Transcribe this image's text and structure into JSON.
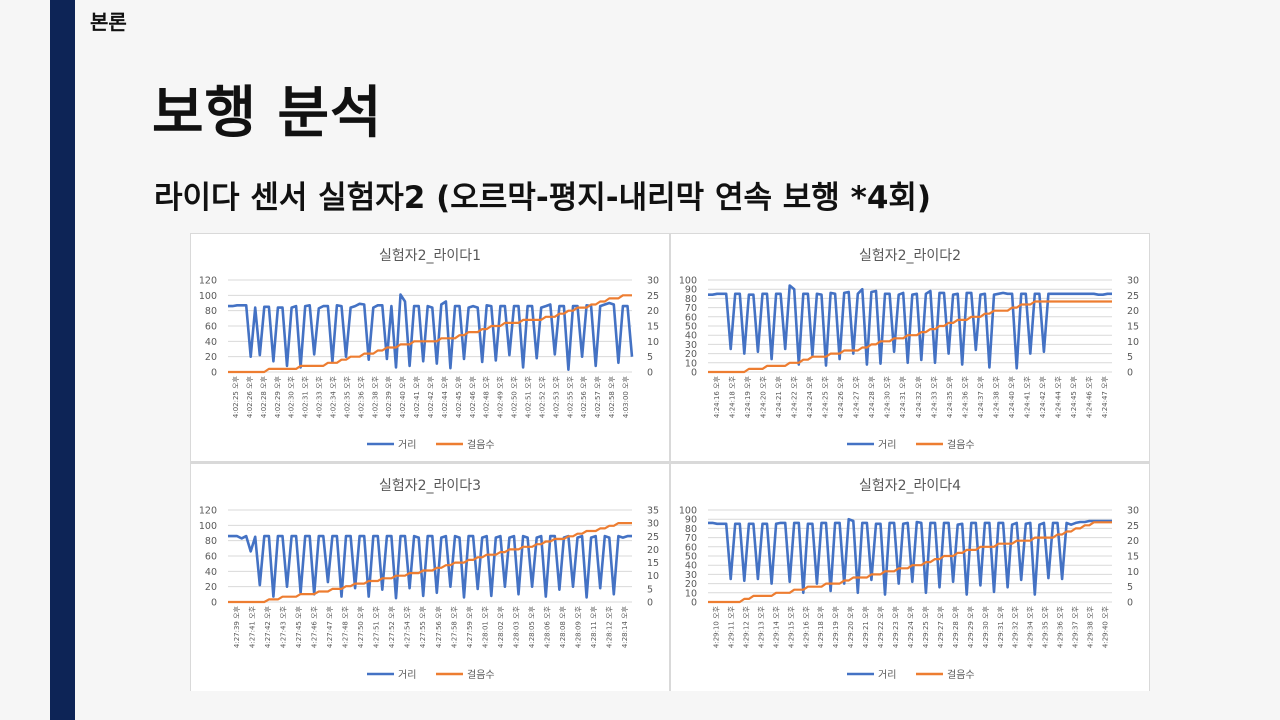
{
  "slide": {
    "section": "본론",
    "title": "보행 분석",
    "subtitle": "라이다 센서 실험자2 (오르막-평지-내리막 연속 보행 *4회)"
  },
  "colors": {
    "distance": "#4472c4",
    "steps": "#ed7d31",
    "sidebar": "#0d2456"
  },
  "chart_data": [
    {
      "type": "line",
      "title": "실험자2_라이다1",
      "legend": [
        "거리",
        "걸음수"
      ],
      "legend_position": "bottom",
      "y_left": {
        "min": 0,
        "max": 120,
        "ticks": [
          "120",
          "100",
          "80",
          "60",
          "40",
          "20",
          "0"
        ]
      },
      "y_right": {
        "min": 0,
        "max": 30,
        "ticks": [
          "30",
          "25",
          "20",
          "15",
          "10",
          "5",
          "0"
        ]
      },
      "x_labels": [
        "4:02:25 오후",
        "4:02:26 오후",
        "4:02:28 오후",
        "4:02:29 오후",
        "4:02:30 오후",
        "4:02:31 오후",
        "4:02:33 오후",
        "4:02:34 오후",
        "4:02:35 오후",
        "4:02:36 오후",
        "4:02:38 오후",
        "4:02:39 오후",
        "4:02:40 오후",
        "4:02:41 오후",
        "4:02:42 오후",
        "4:02:44 오후",
        "4:02:45 오후",
        "4:02:46 오후",
        "4:02:48 오후",
        "4:02:49 오후",
        "4:02:50 오후",
        "4:02:51 오후",
        "4:02:52 오후",
        "4:02:53 오후",
        "4:02:55 오후",
        "4:02:56 오후",
        "4:02:57 오후",
        "4:02:58 오후",
        "4:03:00 오후"
      ],
      "series": [
        {
          "name": "거리",
          "axis": "left",
          "values": [
            86,
            86,
            87,
            87,
            87,
            20,
            84,
            22,
            85,
            85,
            14,
            84,
            84,
            8,
            84,
            86,
            6,
            86,
            87,
            23,
            83,
            86,
            86,
            13,
            87,
            86,
            20,
            84,
            86,
            89,
            88,
            16,
            84,
            87,
            87,
            17,
            86,
            6,
            101,
            92,
            8,
            86,
            86,
            14,
            86,
            84,
            11,
            88,
            92,
            5,
            86,
            86,
            17,
            84,
            86,
            84,
            13,
            87,
            86,
            15,
            86,
            86,
            22,
            86,
            86,
            6,
            86,
            86,
            18,
            84,
            86,
            88,
            23,
            86,
            86,
            3,
            86,
            86,
            20,
            87,
            86,
            8,
            86,
            88,
            90,
            88,
            12,
            86,
            86,
            20
          ]
        },
        {
          "name": "걸음수",
          "axis": "right",
          "values": [
            0,
            0,
            0,
            0,
            0,
            0,
            0,
            0,
            0,
            1,
            1,
            1,
            1,
            1,
            1,
            1,
            2,
            2,
            2,
            2,
            2,
            2,
            3,
            3,
            3,
            4,
            4,
            5,
            5,
            5,
            6,
            6,
            6,
            7,
            7,
            8,
            8,
            8,
            9,
            9,
            9,
            10,
            10,
            10,
            10,
            10,
            10,
            11,
            11,
            11,
            11,
            12,
            12,
            13,
            13,
            13,
            14,
            14,
            15,
            15,
            15,
            16,
            16,
            16,
            16,
            17,
            17,
            17,
            17,
            17,
            18,
            18,
            18,
            19,
            19,
            20,
            20,
            21,
            21,
            21,
            22,
            22,
            23,
            23,
            24,
            24,
            24,
            25,
            25,
            25
          ]
        }
      ]
    },
    {
      "type": "line",
      "title": "실험자2_라이다2",
      "legend": [
        "거리",
        "걸음수"
      ],
      "legend_position": "bottom",
      "y_left": {
        "min": 0,
        "max": 100,
        "ticks": [
          "100",
          "90",
          "80",
          "70",
          "60",
          "50",
          "40",
          "30",
          "20",
          "10",
          "0"
        ]
      },
      "y_right": {
        "min": 0,
        "max": 30,
        "ticks": [
          "30",
          "25",
          "20",
          "15",
          "10",
          "5",
          "0"
        ]
      },
      "x_labels": [
        "4:24:16 오후",
        "4:24:18 오후",
        "4:24:19 오후",
        "4:24:20 오후",
        "4:24:21 오후",
        "4:24:22 오후",
        "4:24:24 오후",
        "4:24:25 오후",
        "4:24:26 오후",
        "4:24:27 오후",
        "4:24:28 오후",
        "4:24:30 오후",
        "4:24:31 오후",
        "4:24:32 오후",
        "4:24:33 오후",
        "4:24:35 오후",
        "4:24:36 오후",
        "4:24:37 오후",
        "4:24:38 오후",
        "4:24:40 오후",
        "4:24:41 오후",
        "4:24:42 오후",
        "4:24:44 오후",
        "4:24:45 오후",
        "4:24:46 오후",
        "4:24:47 오후"
      ],
      "series": [
        {
          "name": "거리",
          "axis": "left",
          "values": [
            84,
            84,
            85,
            85,
            85,
            25,
            85,
            85,
            20,
            84,
            84,
            22,
            85,
            85,
            14,
            85,
            85,
            25,
            94,
            90,
            8,
            85,
            85,
            18,
            85,
            84,
            7,
            86,
            85,
            14,
            86,
            87,
            20,
            85,
            90,
            8,
            87,
            88,
            9,
            85,
            85,
            22,
            84,
            86,
            10,
            84,
            85,
            13,
            85,
            88,
            10,
            86,
            86,
            20,
            84,
            85,
            8,
            86,
            86,
            24,
            84,
            85,
            5,
            84,
            85,
            86,
            85,
            85,
            4,
            85,
            85,
            20,
            85,
            85,
            22,
            85,
            85,
            85,
            85,
            85,
            85,
            85,
            85,
            85,
            85,
            85,
            84,
            84,
            85,
            85
          ]
        },
        {
          "name": "걸음수",
          "axis": "right",
          "values": [
            0,
            0,
            0,
            0,
            0,
            0,
            0,
            0,
            0,
            1,
            1,
            1,
            1,
            2,
            2,
            2,
            2,
            2,
            3,
            3,
            3,
            4,
            4,
            5,
            5,
            5,
            5,
            6,
            6,
            6,
            7,
            7,
            7,
            7,
            8,
            8,
            9,
            9,
            10,
            10,
            10,
            11,
            11,
            11,
            12,
            12,
            12,
            13,
            13,
            14,
            14,
            15,
            15,
            16,
            16,
            17,
            17,
            17,
            18,
            18,
            18,
            19,
            19,
            20,
            20,
            20,
            20,
            21,
            21,
            22,
            22,
            22,
            23,
            23,
            23,
            23,
            23,
            23,
            23,
            23,
            23,
            23,
            23,
            23,
            23,
            23,
            23,
            23,
            23,
            23
          ]
        }
      ]
    },
    {
      "type": "line",
      "title": "실험자2_라이다3",
      "legend": [
        "거리",
        "걸음수"
      ],
      "legend_position": "bottom",
      "y_left": {
        "min": 0,
        "max": 120,
        "ticks": [
          "120",
          "100",
          "80",
          "60",
          "40",
          "20",
          "0"
        ]
      },
      "y_right": {
        "min": 0,
        "max": 35,
        "ticks": [
          "35",
          "30",
          "25",
          "20",
          "15",
          "10",
          "5",
          "0"
        ]
      },
      "x_labels": [
        "4:27:39 오후",
        "4:27:41 오후",
        "4:27:42 오후",
        "4:27:43 오후",
        "4:27:45 오후",
        "4:27:46 오후",
        "4:27:47 오후",
        "4:27:48 오후",
        "4:27:50 오후",
        "4:27:51 오후",
        "4:27:52 오후",
        "4:27:54 오후",
        "4:27:55 오후",
        "4:27:56 오후",
        "4:27:58 오후",
        "4:27:59 오후",
        "4:28:01 오후",
        "4:28:02 오후",
        "4:28:03 오후",
        "4:28:05 오후",
        "4:28:06 오후",
        "4:28:08 오후",
        "4:28:09 오후",
        "4:28:11 오후",
        "4:28:12 오후",
        "4:28:14 오후"
      ],
      "series": [
        {
          "name": "거리",
          "axis": "left",
          "values": [
            86,
            86,
            86,
            83,
            86,
            66,
            85,
            22,
            86,
            86,
            7,
            86,
            86,
            20,
            86,
            86,
            12,
            86,
            86,
            10,
            86,
            86,
            26,
            86,
            86,
            7,
            86,
            86,
            18,
            86,
            86,
            7,
            86,
            86,
            16,
            86,
            86,
            5,
            86,
            86,
            18,
            86,
            84,
            8,
            86,
            86,
            12,
            84,
            86,
            20,
            86,
            84,
            6,
            86,
            86,
            17,
            84,
            86,
            8,
            84,
            86,
            20,
            84,
            86,
            10,
            86,
            84,
            20,
            84,
            86,
            7,
            86,
            86,
            16,
            84,
            86,
            20,
            84,
            86,
            6,
            84,
            86,
            18,
            86,
            84,
            10,
            86,
            84,
            86,
            86
          ]
        },
        {
          "name": "걸음수",
          "axis": "right",
          "values": [
            0,
            0,
            0,
            0,
            0,
            0,
            0,
            0,
            0,
            1,
            1,
            1,
            2,
            2,
            2,
            2,
            3,
            3,
            3,
            3,
            4,
            4,
            4,
            5,
            5,
            5,
            6,
            6,
            7,
            7,
            7,
            8,
            8,
            8,
            9,
            9,
            9,
            10,
            10,
            10,
            11,
            11,
            11,
            12,
            12,
            12,
            13,
            13,
            14,
            14,
            15,
            15,
            15,
            16,
            16,
            17,
            17,
            18,
            18,
            18,
            19,
            19,
            20,
            20,
            20,
            21,
            21,
            21,
            22,
            22,
            23,
            23,
            24,
            24,
            24,
            25,
            25,
            26,
            26,
            27,
            27,
            27,
            28,
            28,
            29,
            29,
            30,
            30,
            30,
            30
          ]
        }
      ]
    },
    {
      "type": "line",
      "title": "실험자2_라이다4",
      "legend": [
        "거리",
        "걸음수"
      ],
      "legend_position": "bottom",
      "y_left": {
        "min": 0,
        "max": 100,
        "ticks": [
          "100",
          "90",
          "80",
          "70",
          "60",
          "50",
          "40",
          "30",
          "20",
          "10",
          "0"
        ]
      },
      "y_right": {
        "min": 0,
        "max": 30,
        "ticks": [
          "30",
          "25",
          "20",
          "15",
          "10",
          "5",
          "0"
        ]
      },
      "x_labels": [
        "4:29:10 오후",
        "4:29:11 오후",
        "4:29:12 오후",
        "4:29:13 오후",
        "4:29:14 오후",
        "4:29:15 오후",
        "4:29:16 오후",
        "4:29:18 오후",
        "4:29:19 오후",
        "4:29:20 오후",
        "4:29:21 오후",
        "4:29:22 오후",
        "4:29:23 오후",
        "4:29:24 오후",
        "4:29:25 오후",
        "4:29:27 오후",
        "4:29:28 오후",
        "4:29:29 오후",
        "4:29:30 오후",
        "4:29:31 오후",
        "4:29:32 오후",
        "4:29:34 오후",
        "4:29:35 오후",
        "4:29:36 오후",
        "4:29:37 오후",
        "4:29:38 오후",
        "4:29:40 오후"
      ],
      "series": [
        {
          "name": "거리",
          "axis": "left",
          "values": [
            86,
            86,
            85,
            85,
            85,
            25,
            85,
            85,
            23,
            85,
            85,
            25,
            85,
            85,
            20,
            85,
            86,
            86,
            22,
            86,
            86,
            10,
            85,
            85,
            20,
            86,
            86,
            12,
            86,
            86,
            20,
            90,
            88,
            10,
            86,
            86,
            24,
            85,
            85,
            8,
            86,
            86,
            20,
            85,
            86,
            22,
            87,
            86,
            10,
            86,
            86,
            16,
            86,
            86,
            22,
            84,
            85,
            8,
            86,
            86,
            18,
            86,
            86,
            11,
            86,
            86,
            16,
            84,
            86,
            24,
            85,
            86,
            8,
            84,
            86,
            26,
            86,
            86,
            25,
            86,
            84,
            86,
            87,
            87,
            88,
            88,
            88,
            88,
            88,
            88
          ]
        },
        {
          "name": "걸음수",
          "axis": "right",
          "values": [
            0,
            0,
            0,
            0,
            0,
            0,
            0,
            0,
            1,
            1,
            2,
            2,
            2,
            2,
            2,
            3,
            3,
            3,
            3,
            4,
            4,
            4,
            5,
            5,
            5,
            5,
            6,
            6,
            6,
            6,
            7,
            7,
            8,
            8,
            8,
            8,
            9,
            9,
            9,
            10,
            10,
            10,
            11,
            11,
            11,
            12,
            12,
            12,
            13,
            13,
            14,
            14,
            15,
            15,
            15,
            16,
            16,
            17,
            17,
            17,
            18,
            18,
            18,
            18,
            19,
            19,
            19,
            19,
            20,
            20,
            20,
            20,
            21,
            21,
            21,
            21,
            21,
            22,
            22,
            23,
            23,
            24,
            24,
            25,
            25,
            26,
            26,
            26,
            26,
            26
          ]
        }
      ]
    }
  ]
}
